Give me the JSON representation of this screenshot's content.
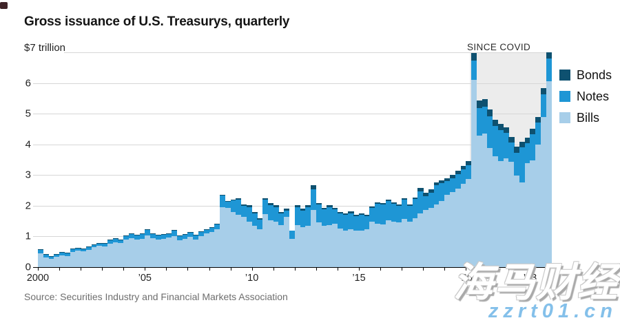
{
  "header": {
    "title": "Gross issuance of U.S. Treasurys, quarterly"
  },
  "y_axis": {
    "top_label": "$7 trillion",
    "ticks": [
      {
        "text": "6",
        "value": 6
      },
      {
        "text": "5",
        "value": 5
      },
      {
        "text": "4",
        "value": 4
      },
      {
        "text": "3",
        "value": 3
      },
      {
        "text": "2",
        "value": 2
      },
      {
        "text": "1",
        "value": 1
      },
      {
        "text": "0",
        "value": 0
      }
    ]
  },
  "x_axis": {
    "tick_years": [
      2000,
      2001,
      2002,
      2003,
      2004,
      2005,
      2006,
      2007,
      2008,
      2009,
      2010,
      2011,
      2012,
      2013,
      2014,
      2015,
      2016,
      2017,
      2018,
      2019,
      2020,
      2021,
      2022,
      2023,
      2024
    ],
    "labels": [
      {
        "text": "2000",
        "year": 2000
      },
      {
        "text": "’05",
        "year": 2005
      },
      {
        "text": "’10",
        "year": 2010
      },
      {
        "text": "’15",
        "year": 2015
      },
      {
        "text": "’20",
        "year": 2020
      },
      {
        "text": "’23",
        "year": 2023
      }
    ]
  },
  "annotation": {
    "label": "SINCE COVID"
  },
  "legend": [
    {
      "label": "Bonds",
      "color": "#0e5170"
    },
    {
      "label": "Notes",
      "color": "#1e96d5"
    },
    {
      "label": "Bills",
      "color": "#a7cee9"
    }
  ],
  "source": "Source: Securities Industry and Financial Markets Association",
  "watermark": {
    "cjk": "海马财经",
    "url": "zzrt01.cn"
  },
  "colors": {
    "grid": "#d6d6d6",
    "axis": "#000000",
    "covid_region": "#ececec",
    "background": "#ffffff"
  },
  "chart_data": {
    "type": "bar",
    "stacked": true,
    "title": "Gross issuance of U.S. Treasurys, quarterly",
    "unit": "USD trillion",
    "frequency": "quarterly",
    "start_year": 2000,
    "end_year": 2023,
    "ylim": [
      0,
      7
    ],
    "grid": true,
    "legend_position": "right",
    "annotation": {
      "label": "SINCE COVID",
      "from": "2020 Q2",
      "to": "2023 Q4"
    },
    "series": [
      {
        "name": "Bills",
        "color": "#a7cee9",
        "values": [
          0.44,
          0.31,
          0.27,
          0.33,
          0.39,
          0.37,
          0.49,
          0.54,
          0.52,
          0.57,
          0.64,
          0.69,
          0.67,
          0.76,
          0.81,
          0.78,
          0.89,
          0.94,
          0.89,
          0.93,
          1.04,
          0.94,
          0.89,
          0.91,
          0.96,
          1.02,
          0.87,
          0.93,
          0.99,
          0.89,
          1.02,
          1.09,
          1.15,
          1.24,
          1.95,
          1.94,
          1.79,
          1.71,
          1.64,
          1.49,
          1.34,
          1.23,
          1.72,
          1.52,
          1.49,
          1.37,
          1.64,
          0.93,
          1.37,
          1.3,
          1.34,
          1.86,
          1.45,
          1.34,
          1.37,
          1.41,
          1.26,
          1.19,
          1.23,
          1.19,
          1.19,
          1.23,
          1.49,
          1.41,
          1.38,
          1.53,
          1.49,
          1.45,
          1.56,
          1.49,
          1.6,
          1.75,
          1.86,
          1.94,
          2.05,
          2.16,
          2.35,
          2.45,
          2.55,
          2.72,
          2.87,
          6.1,
          4.29,
          4.35,
          3.88,
          3.62,
          3.46,
          3.54,
          3.43,
          2.98,
          2.76,
          3.39,
          3.47,
          3.99,
          4.9,
          6.05
        ]
      },
      {
        "name": "Notes",
        "color": "#1e96d5",
        "values": [
          0.12,
          0.09,
          0.08,
          0.08,
          0.08,
          0.08,
          0.09,
          0.08,
          0.08,
          0.09,
          0.09,
          0.09,
          0.1,
          0.12,
          0.12,
          0.1,
          0.14,
          0.14,
          0.16,
          0.17,
          0.18,
          0.16,
          0.16,
          0.16,
          0.14,
          0.18,
          0.16,
          0.14,
          0.14,
          0.16,
          0.14,
          0.14,
          0.14,
          0.16,
          0.4,
          0.21,
          0.38,
          0.48,
          0.36,
          0.47,
          0.4,
          0.32,
          0.48,
          0.51,
          0.47,
          0.37,
          0.21,
          0.26,
          0.59,
          0.55,
          0.62,
          0.67,
          0.59,
          0.55,
          0.59,
          0.48,
          0.48,
          0.51,
          0.53,
          0.47,
          0.51,
          0.43,
          0.43,
          0.66,
          0.66,
          0.62,
          0.58,
          0.55,
          0.63,
          0.51,
          0.62,
          0.72,
          0.46,
          0.49,
          0.61,
          0.57,
          0.45,
          0.45,
          0.48,
          0.46,
          0.46,
          0.63,
          0.9,
          0.88,
          1.03,
          0.97,
          1.0,
          0.83,
          0.63,
          0.75,
          1.14,
          0.64,
          0.85,
          0.73,
          0.73,
          0.75
        ]
      },
      {
        "name": "Bonds",
        "color": "#0e5170",
        "values": [
          0.03,
          0.02,
          0.02,
          0.02,
          0.02,
          0.02,
          0.02,
          0.01,
          0.01,
          0.01,
          0.01,
          0.01,
          0.01,
          0.01,
          0.01,
          0.01,
          0.01,
          0.01,
          0.01,
          0.01,
          0.01,
          0.01,
          0.01,
          0.01,
          0.01,
          0.01,
          0.01,
          0.01,
          0.01,
          0.01,
          0.01,
          0.01,
          0.01,
          0.01,
          0.01,
          0.01,
          0.03,
          0.05,
          0.05,
          0.05,
          0.05,
          0.05,
          0.05,
          0.05,
          0.05,
          0.05,
          0.05,
          0.0,
          0.05,
          0.05,
          0.05,
          0.15,
          0.05,
          0.05,
          0.05,
          0.05,
          0.05,
          0.05,
          0.05,
          0.05,
          0.05,
          0.05,
          0.05,
          0.05,
          0.05,
          0.05,
          0.05,
          0.05,
          0.05,
          0.05,
          0.05,
          0.1,
          0.1,
          0.1,
          0.1,
          0.1,
          0.1,
          0.1,
          0.12,
          0.12,
          0.12,
          0.24,
          0.25,
          0.24,
          0.22,
          0.22,
          0.2,
          0.18,
          0.19,
          0.19,
          0.18,
          0.18,
          0.18,
          0.18,
          0.2,
          0.2
        ]
      }
    ]
  }
}
